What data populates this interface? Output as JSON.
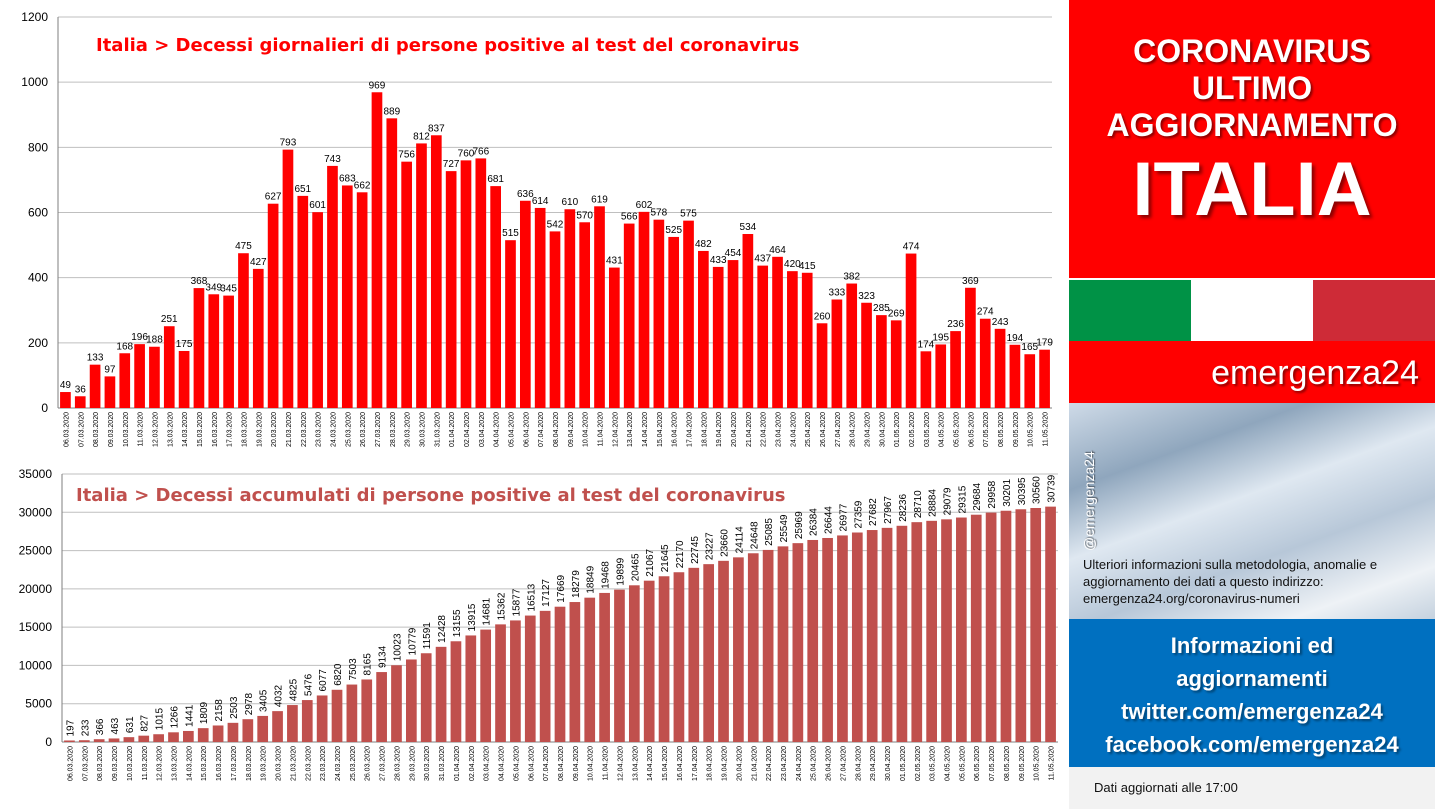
{
  "sidebar": {
    "headline": "CORONAVIRUS\nULTIMO\nAGGIORNAMENTO",
    "country": "ITALIA",
    "brand": "emergenza24",
    "handle": "@emergenza24",
    "note": "Ulteriori informazioni sulla metodologia, anomalie e aggiornamento dei dati a questo indirizzo: emergenza24.org/coronavirus-numeri",
    "info_lines": [
      "Informazioni ed",
      "aggiornamenti",
      "twitter.com/emergenza24",
      "facebook.com/emergenza24"
    ],
    "footer": "Dati aggiornati alle 17:00",
    "colors": {
      "red": "#ff0000",
      "flag_green": "#009246",
      "flag_white": "#ffffff",
      "flag_red": "#ce2b37",
      "blue": "#0070c0"
    }
  },
  "chart_data": [
    {
      "type": "bar",
      "title": "Italia > Decessi giornalieri di persone positive al test del coronavirus",
      "color": "#ff0000",
      "title_color": "#ff0000",
      "ylim": [
        0,
        1200
      ],
      "yticks": [
        0,
        200,
        400,
        600,
        800,
        1000,
        1200
      ],
      "grid": true,
      "categories": [
        "06.03.2020",
        "07.03.2020",
        "08.03.2020",
        "09.03.2020",
        "10.03.2020",
        "11.03.2020",
        "12.03.2020",
        "13.03.2020",
        "14.03.2020",
        "15.03.2020",
        "16.03.2020",
        "17.03.2020",
        "18.03.2020",
        "19.03.2020",
        "20.03.2020",
        "21.03.2020",
        "22.03.2020",
        "23.03.2020",
        "24.03.2020",
        "25.03.2020",
        "26.03.2020",
        "27.03.2020",
        "28.03.2020",
        "29.03.2020",
        "30.03.2020",
        "31.03.2020",
        "01.04.2020",
        "02.04.2020",
        "03.04.2020",
        "04.04.2020",
        "05.04.2020",
        "06.04.2020",
        "07.04.2020",
        "08.04.2020",
        "09.04.2020",
        "10.04.2020",
        "11.04.2020",
        "12.04.2020",
        "13.04.2020",
        "14.04.2020",
        "15.04.2020",
        "16.04.2020",
        "17.04.2020",
        "18.04.2020",
        "19.04.2020",
        "20.04.2020",
        "21.04.2020",
        "22.04.2020",
        "23.04.2020",
        "24.04.2020",
        "25.04.2020",
        "26.04.2020",
        "27.04.2020",
        "28.04.2020",
        "29.04.2020",
        "30.04.2020",
        "01.05.2020",
        "02.05.2020",
        "03.05.2020",
        "04.05.2020",
        "05.05.2020",
        "06.05.2020",
        "07.05.2020",
        "08.05.2020",
        "09.05.2020",
        "10.05.2020",
        "11.05.2020"
      ],
      "values": [
        49,
        36,
        133,
        97,
        168,
        196,
        188,
        251,
        175,
        368,
        349,
        345,
        475,
        427,
        627,
        793,
        651,
        601,
        743,
        683,
        662,
        969,
        889,
        756,
        812,
        837,
        727,
        760,
        766,
        681,
        515,
        636,
        614,
        542,
        610,
        570,
        619,
        431,
        566,
        602,
        578,
        525,
        575,
        482,
        433,
        454,
        534,
        437,
        464,
        420,
        415,
        260,
        333,
        382,
        323,
        285,
        269,
        474,
        174,
        195,
        236,
        369,
        274,
        243,
        194,
        165,
        179
      ]
    },
    {
      "type": "bar",
      "title": "Italia > Decessi accumulati di persone positive al test del coronavirus",
      "color": "#c0504d",
      "title_color": "#c0504d",
      "ylim": [
        0,
        35000
      ],
      "yticks": [
        0,
        5000,
        10000,
        15000,
        20000,
        25000,
        30000,
        35000
      ],
      "grid": true,
      "categories": [
        "06.03.2020",
        "07.03.2020",
        "08.03.2020",
        "09.03.2020",
        "10.03.2020",
        "11.03.2020",
        "12.03.2020",
        "13.03.2020",
        "14.03.2020",
        "15.03.2020",
        "16.03.2020",
        "17.03.2020",
        "18.03.2020",
        "19.03.2020",
        "20.03.2020",
        "21.03.2020",
        "22.03.2020",
        "23.03.2020",
        "24.03.2020",
        "25.03.2020",
        "26.03.2020",
        "27.03.2020",
        "28.03.2020",
        "29.03.2020",
        "30.03.2020",
        "31.03.2020",
        "01.04.2020",
        "02.04.2020",
        "03.04.2020",
        "04.04.2020",
        "05.04.2020",
        "06.04.2020",
        "07.04.2020",
        "08.04.2020",
        "09.04.2020",
        "10.04.2020",
        "11.04.2020",
        "12.04.2020",
        "13.04.2020",
        "14.04.2020",
        "15.04.2020",
        "16.04.2020",
        "17.04.2020",
        "18.04.2020",
        "19.04.2020",
        "20.04.2020",
        "21.04.2020",
        "22.04.2020",
        "23.04.2020",
        "24.04.2020",
        "25.04.2020",
        "26.04.2020",
        "27.04.2020",
        "28.04.2020",
        "29.04.2020",
        "30.04.2020",
        "01.05.2020",
        "02.05.2020",
        "03.05.2020",
        "04.05.2020",
        "05.05.2020",
        "06.05.2020",
        "07.05.2020",
        "08.05.2020",
        "09.05.2020",
        "10.05.2020",
        "11.05.2020"
      ],
      "values": [
        197,
        233,
        366,
        463,
        631,
        827,
        1015,
        1266,
        1441,
        1809,
        2158,
        2503,
        2978,
        3405,
        4032,
        4825,
        5476,
        6077,
        6820,
        7503,
        8165,
        9134,
        10023,
        10779,
        11591,
        12428,
        13155,
        13915,
        14681,
        15362,
        15877,
        16513,
        17127,
        17669,
        18279,
        18849,
        19468,
        19899,
        20465,
        21067,
        21645,
        22170,
        22745,
        23227,
        23660,
        24114,
        24648,
        25085,
        25549,
        25969,
        26384,
        26644,
        26977,
        27359,
        27682,
        27967,
        28236,
        28710,
        28884,
        29079,
        29315,
        29684,
        29958,
        30201,
        30395,
        30560,
        30739
      ]
    }
  ]
}
